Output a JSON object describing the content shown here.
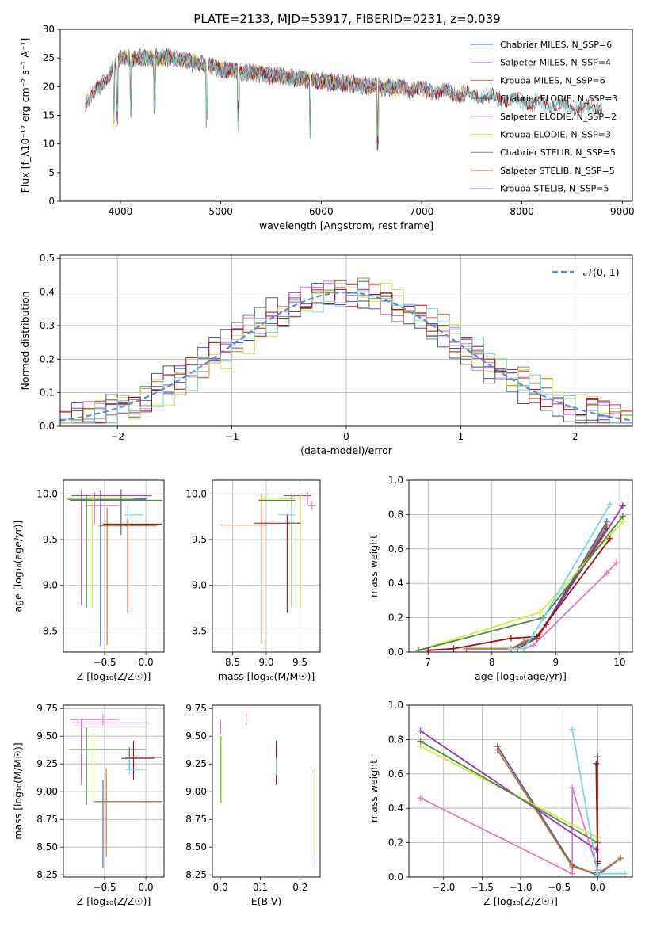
{
  "figure": {
    "title": "PLATE=2133, MJD=53917, FIBERID=0231, z=0.039"
  },
  "chart_data": [
    {
      "id": "spectrum",
      "type": "line",
      "title": "PLATE=2133, MJD=53917, FIBERID=0231, z=0.039",
      "xlabel": "wavelength [Angstrom, rest frame]",
      "ylabel": "Flux [f_λ10⁻¹⁷ erg cm⁻² s⁻¹ A⁻¹]",
      "xlim": [
        3400,
        9100
      ],
      "ylim": [
        0,
        30
      ],
      "xticks": [
        4000,
        5000,
        6000,
        7000,
        8000,
        9000
      ],
      "yticks": [
        0,
        5,
        10,
        15,
        20,
        25,
        30
      ],
      "grid": false,
      "legend_position": "top-right",
      "series": [
        {
          "name": "Chabrier MILES, N_SSP=6",
          "color": "#4060c0",
          "range": [
            3650,
            7400
          ]
        },
        {
          "name": "Salpeter MILES, N_SSP=4",
          "color": "#e377c2",
          "range": [
            3650,
            7400
          ]
        },
        {
          "name": "Kroupa MILES, N_SSP=6",
          "color": "#d07020",
          "range": [
            3650,
            7450
          ]
        },
        {
          "name": "Chabrier ELODIE, N_SSP=3",
          "color": "#555555",
          "range": [
            3900,
            6800
          ]
        },
        {
          "name": "Salpeter ELODIE, N_SSP=2",
          "color": "#9b30b0",
          "range": [
            3900,
            6800
          ]
        },
        {
          "name": "Kroupa ELODIE, N_SSP=3",
          "color": "#d0ec40",
          "range": [
            3900,
            6800
          ]
        },
        {
          "name": "Chabrier STELIB, N_SSP=5",
          "color": "#7f7f7f",
          "range": [
            3650,
            8800
          ]
        },
        {
          "name": "Salpeter STELIB, N_SSP=5",
          "color": "#a01010",
          "range": [
            3650,
            8800
          ]
        },
        {
          "name": "Kroupa STELIB, N_SSP=5",
          "color": "#70d8e0",
          "range": [
            3650,
            8800
          ]
        }
      ],
      "anchors": {
        "x": [
          3650,
          3800,
          4000,
          4200,
          4500,
          4800,
          5000,
          5500,
          6000,
          6500,
          7000,
          7500,
          8000,
          8500,
          8800
        ],
        "y": [
          17,
          20,
          25,
          25,
          25,
          24,
          23,
          22,
          21,
          20,
          19.5,
          18.5,
          17.5,
          16.5,
          16.5
        ]
      }
    },
    {
      "id": "residuals",
      "type": "line",
      "xlabel": "(data-model)/error",
      "ylabel": "Normed distribution",
      "xlim": [
        -2.5,
        2.5
      ],
      "ylim": [
        0,
        0.51
      ],
      "xticks": [
        -2,
        -1,
        0,
        1,
        2
      ],
      "yticks": [
        0.0,
        0.1,
        0.2,
        0.3,
        0.4,
        0.5
      ],
      "grid": true,
      "legend_position": "top-right",
      "reference": {
        "name": "𝒩(0, 1)",
        "color": "#5b8bd8",
        "style": "dashed"
      },
      "bin_width": 0.1,
      "colors": [
        "#4060c0",
        "#e377c2",
        "#d07020",
        "#555555",
        "#9b30b0",
        "#d0ec40",
        "#7f7f7f",
        "#a01010",
        "#70d8e0"
      ]
    },
    {
      "id": "age_vs_Z",
      "type": "scatter",
      "xlabel": "Z [log₁₀(Z/Z☉)]",
      "ylabel": "age  [log₁₀(age/yr)]",
      "xlim": [
        -1.0,
        0.22
      ],
      "ylim": [
        8.27,
        10.15
      ],
      "xticks": [
        -0.5,
        0.0
      ],
      "yticks": [
        8.5,
        9.0,
        9.5,
        10.0
      ],
      "grid": true,
      "points": [
        {
          "x": -0.55,
          "y": 9.94,
          "xerr": [
            0.4,
            0.55
          ],
          "yerr": [
            1.6,
            0.1
          ],
          "color": "#4060c0"
        },
        {
          "x": -0.62,
          "y": 9.87,
          "xerr": [
            0.1,
            0.3
          ],
          "yerr": [
            0.2,
            0.15
          ],
          "color": "#e377c2"
        },
        {
          "x": -0.47,
          "y": 9.65,
          "xerr": [
            0.1,
            0.6
          ],
          "yerr": [
            1.3,
            0.2
          ],
          "color": "#d07020"
        },
        {
          "x": -0.3,
          "y": 9.95,
          "xerr": [
            0.6,
            0.32
          ],
          "yerr": [
            0.4,
            0.1
          ],
          "color": "#555555"
        },
        {
          "x": -0.78,
          "y": 9.98,
          "xerr": [
            0.12,
            0.85
          ],
          "yerr": [
            1.2,
            0.06
          ],
          "color": "#9b30b0"
        },
        {
          "x": -0.65,
          "y": 9.95,
          "xerr": [
            0.32,
            0.5
          ],
          "yerr": [
            1.2,
            0.06
          ],
          "color": "#d0ec40"
        },
        {
          "x": -0.72,
          "y": 9.93,
          "xerr": [
            0.2,
            0.92
          ],
          "yerr": [
            1.18,
            0.06
          ],
          "color": "#4a8a3a"
        },
        {
          "x": -0.22,
          "y": 9.67,
          "xerr": [
            0.3,
            0.42
          ],
          "yerr": [
            0.97,
            0.07
          ],
          "color": "#a01010"
        },
        {
          "x": -0.22,
          "y": 9.77,
          "xerr": [
            0.05,
            0.2
          ],
          "yerr": [
            0.05,
            0.1
          ],
          "color": "#70d8e0"
        }
      ]
    },
    {
      "id": "age_vs_mass",
      "type": "scatter",
      "xlabel": "mass [log₁₀(M/M☉)]",
      "ylabel": "",
      "xlim": [
        8.2,
        9.8
      ],
      "ylim": [
        8.27,
        10.15
      ],
      "xticks": [
        8.5,
        9.0,
        9.5
      ],
      "yticks": [
        8.5,
        9.0,
        9.5,
        10.0
      ],
      "grid": true,
      "points": [
        {
          "x": 8.93,
          "y": 9.66,
          "xerr": [
            0.6,
            0.1
          ],
          "yerr": [
            1.3,
            0.34
          ],
          "color": "#4060c0"
        },
        {
          "x": 9.68,
          "y": 9.87,
          "xerr": [
            0.05,
            0.05
          ],
          "yerr": [
            0.05,
            0.05
          ],
          "color": "#e377c2"
        },
        {
          "x": 8.93,
          "y": 9.66,
          "xerr": [
            0.6,
            0.1
          ],
          "yerr": [
            1.3,
            0.34
          ],
          "color": "#d07020"
        },
        {
          "x": 9.38,
          "y": 9.95,
          "xerr": [
            0.15,
            0.05
          ],
          "yerr": [
            1.2,
            0.05
          ],
          "color": "#555555"
        },
        {
          "x": 9.61,
          "y": 9.98,
          "xerr": [
            0.35,
            0.05
          ],
          "yerr": [
            0.1,
            0.04
          ],
          "color": "#9b30b0"
        },
        {
          "x": 9.51,
          "y": 9.95,
          "xerr": [
            0.6,
            0.05
          ],
          "yerr": [
            1.2,
            0.04
          ],
          "color": "#d0ec40"
        },
        {
          "x": 9.38,
          "y": 9.93,
          "xerr": [
            0.5,
            0.05
          ],
          "yerr": [
            1.15,
            0.08
          ],
          "color": "#4a8a3a"
        },
        {
          "x": 9.31,
          "y": 9.68,
          "xerr": [
            0.5,
            0.2
          ],
          "yerr": [
            0.98,
            0.1
          ],
          "color": "#a01010"
        },
        {
          "x": 9.38,
          "y": 9.77,
          "xerr": [
            0.2,
            0.05
          ],
          "yerr": [
            0.1,
            0.05
          ],
          "color": "#70d8e0"
        }
      ]
    },
    {
      "id": "massweight_vs_age",
      "type": "line",
      "xlabel": "age  [log₁₀(age/yr)]",
      "ylabel": "mass weight",
      "xlim": [
        6.7,
        10.2
      ],
      "ylim": [
        0,
        1.0
      ],
      "xticks": [
        7,
        8,
        9,
        10
      ],
      "yticks": [
        0.0,
        0.2,
        0.4,
        0.6,
        0.8,
        1.0
      ],
      "grid": true,
      "series": [
        {
          "color": "#4060c0",
          "x": [
            7.6,
            8.3,
            8.5,
            8.75,
            9.8
          ],
          "y": [
            0.02,
            0.02,
            0.05,
            0.1,
            0.76
          ]
        },
        {
          "color": "#e377c2",
          "x": [
            8.5,
            8.65,
            9.8,
            9.95
          ],
          "y": [
            0.02,
            0.04,
            0.46,
            0.52
          ]
        },
        {
          "color": "#d07020",
          "x": [
            7.6,
            8.3,
            8.5,
            8.75,
            9.8
          ],
          "y": [
            0.02,
            0.02,
            0.06,
            0.1,
            0.74
          ]
        },
        {
          "color": "#555555",
          "x": [
            8.4,
            8.7,
            9.8
          ],
          "y": [
            0.02,
            0.08,
            0.72
          ]
        },
        {
          "color": "#9b30b0",
          "x": [
            8.85,
            10.05
          ],
          "y": [
            0.16,
            0.85
          ]
        },
        {
          "color": "#d0ec40",
          "x": [
            6.85,
            8.75,
            10.05
          ],
          "y": [
            0.01,
            0.23,
            0.76
          ]
        },
        {
          "color": "#4a8a3a",
          "x": [
            6.85,
            8.8,
            10.05
          ],
          "y": [
            0.01,
            0.2,
            0.79
          ]
        },
        {
          "color": "#a01010",
          "x": [
            7.0,
            7.4,
            8.3,
            8.7,
            9.85
          ],
          "y": [
            0.01,
            0.02,
            0.08,
            0.09,
            0.66
          ]
        },
        {
          "color": "#70d8e0",
          "x": [
            8.3,
            8.5,
            8.65,
            9.85
          ],
          "y": [
            0.02,
            0.02,
            0.1,
            0.86
          ]
        }
      ]
    },
    {
      "id": "mass_vs_Z",
      "type": "scatter",
      "xlabel": "Z [log₁₀(Z/Z☉)]",
      "ylabel": "mass [log₁₀(M/M☉)]",
      "xlim": [
        -1.0,
        0.22
      ],
      "ylim": [
        8.23,
        9.78
      ],
      "xticks": [
        -0.5,
        0.0
      ],
      "yticks": [
        8.25,
        8.5,
        8.75,
        9.0,
        9.25,
        9.5,
        9.75
      ],
      "grid": true,
      "points": [
        {
          "x": -0.52,
          "y": 8.91,
          "xerr": [
            0.12,
            0.72
          ],
          "yerr": [
            0.6,
            0.2
          ],
          "color": "#4060c0"
        },
        {
          "x": -0.52,
          "y": 9.65,
          "xerr": [
            0.4,
            0.2
          ],
          "yerr": [
            0.05,
            0.05
          ],
          "color": "#e377c2"
        },
        {
          "x": -0.48,
          "y": 8.91,
          "xerr": [
            0.1,
            0.6
          ],
          "yerr": [
            0.5,
            0.3
          ],
          "color": "#d07020"
        },
        {
          "x": -0.2,
          "y": 9.3,
          "xerr": [
            0.1,
            0.3
          ],
          "yerr": [
            0.1,
            0.1
          ],
          "color": "#555555"
        },
        {
          "x": -0.78,
          "y": 9.62,
          "xerr": [
            0.12,
            0.82
          ],
          "yerr": [
            0.56,
            0.04
          ],
          "color": "#9b30b0"
        },
        {
          "x": -0.63,
          "y": 9.38,
          "xerr": [
            0.32,
            0.63
          ],
          "yerr": [
            0.5,
            0.14
          ],
          "color": "#d0ec40"
        },
        {
          "x": -0.72,
          "y": 9.38,
          "xerr": [
            0.2,
            0.72
          ],
          "yerr": [
            0.5,
            0.2
          ],
          "color": "#4a8a3a"
        },
        {
          "x": -0.15,
          "y": 9.31,
          "xerr": [
            0.1,
            0.35
          ],
          "yerr": [
            0.2,
            0.15
          ],
          "color": "#a01010"
        },
        {
          "x": -0.2,
          "y": 9.2,
          "xerr": [
            0.05,
            0.2
          ],
          "yerr": [
            0.05,
            0.1
          ],
          "color": "#70d8e0"
        }
      ]
    },
    {
      "id": "mass_vs_ebv",
      "type": "scatter",
      "xlabel": "E(B-V)",
      "ylabel": "",
      "xlim": [
        -0.02,
        0.25
      ],
      "ylim": [
        8.23,
        9.78
      ],
      "xticks": [
        0.0,
        0.1,
        0.2
      ],
      "yticks": [
        8.25,
        8.5,
        8.75,
        9.0,
        9.25,
        9.5,
        9.75
      ],
      "grid": false,
      "points": [
        {
          "x": 0.237,
          "y": 8.91,
          "yerr": [
            0.6,
            0.3
          ],
          "color": "#4060c0"
        },
        {
          "x": 0.065,
          "y": 9.65,
          "yerr": [
            0.05,
            0.05
          ],
          "color": "#e377c2"
        },
        {
          "x": 0.237,
          "y": 8.91,
          "yerr": [
            0.5,
            0.3
          ],
          "color": "#d07020"
        },
        {
          "x": 0.14,
          "y": 9.3,
          "yerr": [
            0.1,
            0.1
          ],
          "color": "#555555"
        },
        {
          "x": 0.0,
          "y": 9.62,
          "yerr": [
            0.1,
            0.03
          ],
          "color": "#9b30b0"
        },
        {
          "x": 0.003,
          "y": 9.2,
          "yerr": [
            0.3,
            0.3
          ],
          "color": "#d0ec40"
        },
        {
          "x": 0.0,
          "y": 9.2,
          "yerr": [
            0.3,
            0.3
          ],
          "color": "#4a8a3a"
        },
        {
          "x": 0.14,
          "y": 9.31,
          "yerr": [
            0.25,
            0.15
          ],
          "color": "#a01010"
        },
        {
          "x": 0.14,
          "y": 9.2,
          "yerr": [
            0.05,
            0.1
          ],
          "color": "#70d8e0"
        }
      ]
    },
    {
      "id": "massweight_vs_Z",
      "type": "line",
      "xlabel": "Z [log₁₀(Z/Z☉)]",
      "ylabel": "mass weight",
      "xlim": [
        -2.45,
        0.45
      ],
      "ylim": [
        0,
        1.0
      ],
      "xticks": [
        -2.0,
        -1.5,
        -1.0,
        -0.5,
        0.0
      ],
      "yticks": [
        0.0,
        0.2,
        0.4,
        0.6,
        0.8,
        1.0
      ],
      "grid": true,
      "series": [
        {
          "color": "#4060c0",
          "x": [
            -1.3,
            -0.33,
            0.0,
            0.3
          ],
          "y": [
            0.76,
            0.07,
            0.01,
            0.11
          ]
        },
        {
          "color": "#e377c2",
          "x": [
            -2.3,
            -0.33,
            -0.33,
            0.0
          ],
          "y": [
            0.46,
            0.02,
            0.52,
            0.04
          ]
        },
        {
          "color": "#d07020",
          "x": [
            -1.3,
            -0.33,
            0.0,
            0.3
          ],
          "y": [
            0.74,
            0.06,
            0.02,
            0.11
          ]
        },
        {
          "color": "#555555",
          "x": [
            -0.0,
            -0.0
          ],
          "y": [
            0.08,
            0.7
          ]
        },
        {
          "color": "#9b30b0",
          "x": [
            -2.3,
            -0.02
          ],
          "y": [
            0.85,
            0.16
          ]
        },
        {
          "color": "#d0ec40",
          "x": [
            -2.3,
            0.0
          ],
          "y": [
            0.76,
            0.23
          ]
        },
        {
          "color": "#4a8a3a",
          "x": [
            -2.3,
            0.0
          ],
          "y": [
            0.79,
            0.2
          ]
        },
        {
          "color": "#a01010",
          "x": [
            -0.02,
            0.0
          ],
          "y": [
            0.66,
            0.09
          ]
        },
        {
          "color": "#70d8e0",
          "x": [
            -0.33,
            0.0,
            0.35
          ],
          "y": [
            0.86,
            0.02,
            0.02
          ]
        }
      ]
    }
  ]
}
